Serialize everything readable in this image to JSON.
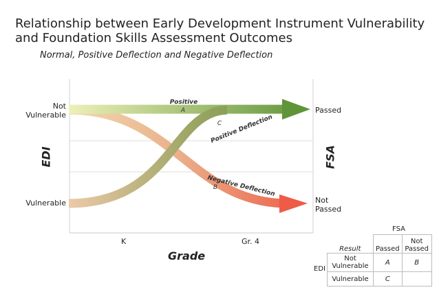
{
  "title": "Relationship between Early Development Instrument Vulnerability and Foundation Skills Assessment Outcomes",
  "subtitle": "Normal, Positive Deflection and Negative Deflection",
  "y_axis": {
    "label": "EDI",
    "top": "Not Vulnerable",
    "bottom": "Vulnerable"
  },
  "x_axis": {
    "label": "Grade",
    "start": "K",
    "end": "Gr. 4"
  },
  "right_axis": {
    "label": "FSA",
    "top": "Passed",
    "bottom": "Not Passed"
  },
  "paths": {
    "a": {
      "name": "Positive",
      "letter": "A"
    },
    "c": {
      "name": "Positive Deflection",
      "letter": "C"
    },
    "b": {
      "name": "Negative Deflection",
      "letter": "B"
    }
  },
  "colors": {
    "green": "#5f9438",
    "red": "#ee5b46",
    "start_yellow": "#eef0b8",
    "start_peach": "#edc9a8"
  },
  "legend": {
    "fsa": "FSA",
    "edi": "EDI",
    "result": "Result",
    "passed": "Passed",
    "not_passed": "Not Passed",
    "not_vulnerable": "Not Vulnerable",
    "vulnerable": "Vulnerable",
    "a": "A",
    "b": "B",
    "c": "C"
  }
}
